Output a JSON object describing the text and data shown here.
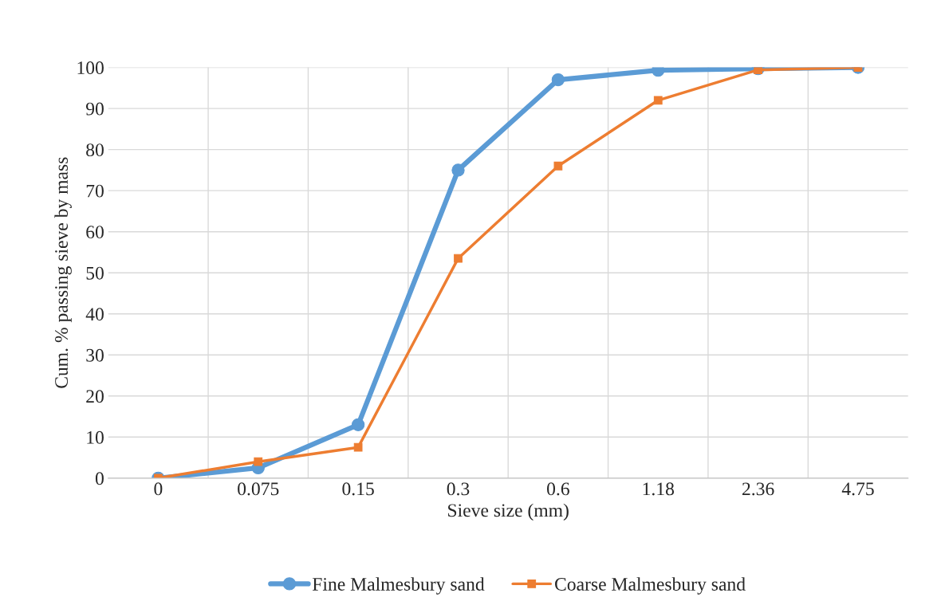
{
  "chart_data": {
    "type": "line",
    "xlabel": "Sieve size (mm)",
    "ylabel": "Cum. % passing sieve by mass",
    "categories": [
      "0",
      "0.075",
      "0.15",
      "0.3",
      "0.6",
      "1.18",
      "2.36",
      "4.75"
    ],
    "series": [
      {
        "name": "Fine Malmesbury sand",
        "color": "#5b9bd5",
        "marker": "circle",
        "values": [
          0,
          2.5,
          13,
          75,
          97,
          99.3,
          99.7,
          100
        ]
      },
      {
        "name": "Coarse Malmesbury sand",
        "color": "#ed7d31",
        "marker": "square",
        "values": [
          0,
          4,
          7.5,
          53.5,
          76,
          92,
          99.4,
          100
        ]
      }
    ],
    "ylim": [
      0,
      100
    ],
    "yticks": [
      0,
      10,
      20,
      30,
      40,
      50,
      60,
      70,
      80,
      90,
      100
    ],
    "grid": true,
    "legend": "bottom",
    "line_style": "solid"
  }
}
